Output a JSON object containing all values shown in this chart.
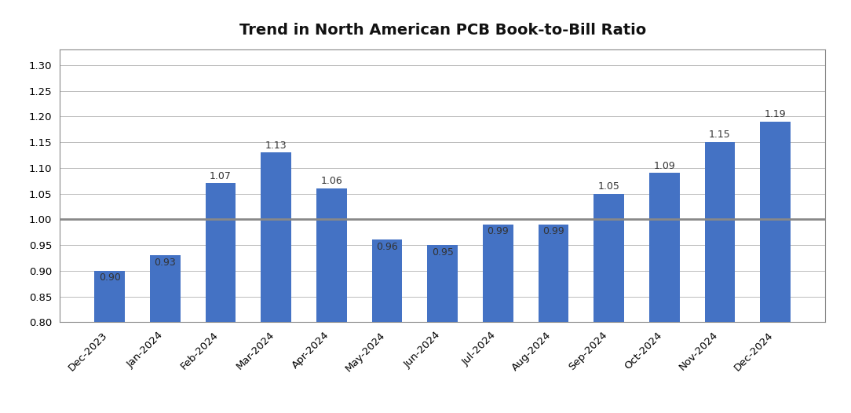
{
  "title": "Trend in North American PCB Book-to-Bill Ratio",
  "categories": [
    "Dec-2023",
    "Jan-2024",
    "Feb-2024",
    "Mar-2024",
    "Apr-2024",
    "May-2024",
    "Jun-2024",
    "Jul-2024",
    "Aug-2024",
    "Sep-2024",
    "Oct-2024",
    "Nov-2024",
    "Dec-2024"
  ],
  "values": [
    0.9,
    0.93,
    1.07,
    1.13,
    1.06,
    0.96,
    0.95,
    0.99,
    0.99,
    1.05,
    1.09,
    1.15,
    1.19
  ],
  "bar_color": "#4472C4",
  "reference_line": 1.0,
  "reference_line_color": "#888888",
  "ylim": [
    0.8,
    1.33
  ],
  "yticks": [
    0.8,
    0.85,
    0.9,
    0.95,
    1.0,
    1.05,
    1.1,
    1.15,
    1.2,
    1.25,
    1.3
  ],
  "title_fontsize": 14,
  "tick_fontsize": 9.5,
  "label_fontsize": 9,
  "background_color": "#ffffff",
  "grid_color": "#bbbbbb",
  "bar_bottom": 0.8
}
